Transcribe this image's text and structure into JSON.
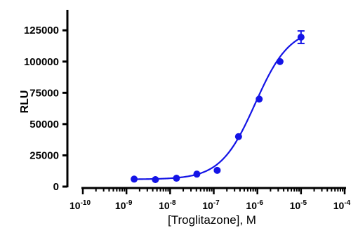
{
  "chart_data": {
    "type": "scatter",
    "xlabel": "[Troglitazone], M",
    "ylabel": "RLU",
    "xscale": "log",
    "xlim": [
      1e-10,
      0.0001
    ],
    "ylim": [
      0,
      135000
    ],
    "yticks": [
      {
        "value": 0,
        "label": "0"
      },
      {
        "value": 25000,
        "label": "25000"
      },
      {
        "value": 50000,
        "label": "50000"
      },
      {
        "value": 75000,
        "label": "75000"
      },
      {
        "value": 100000,
        "label": "100000"
      },
      {
        "value": 125000,
        "label": "125000"
      }
    ],
    "xticks": [
      {
        "exp": -10,
        "label_base": "10",
        "label_exp": "-10"
      },
      {
        "exp": -9,
        "label_base": "10",
        "label_exp": "-9"
      },
      {
        "exp": -8,
        "label_base": "10",
        "label_exp": "-8"
      },
      {
        "exp": -7,
        "label_base": "10",
        "label_exp": "-7"
      },
      {
        "exp": -6,
        "label_base": "10",
        "label_exp": "-6"
      },
      {
        "exp": -5,
        "label_base": "10",
        "label_exp": "-5"
      },
      {
        "exp": -4,
        "label_base": "10",
        "label_exp": "-4"
      }
    ],
    "series": [
      {
        "color": "#1414e6",
        "points": [
          {
            "x": 1.5e-09,
            "y": 6000
          },
          {
            "x": 4.6e-09,
            "y": 5600
          },
          {
            "x": 1.4e-08,
            "y": 6700
          },
          {
            "x": 4.1e-08,
            "y": 10000
          },
          {
            "x": 1.2e-07,
            "y": 13000
          },
          {
            "x": 3.7e-07,
            "y": 40000
          },
          {
            "x": 1.1e-06,
            "y": 70000
          },
          {
            "x": 3.3e-06,
            "y": 100000
          },
          {
            "x": 1e-05,
            "y": 119500,
            "err": 5000
          }
        ],
        "fit": {
          "model": "4PL",
          "bottom": 5800,
          "top": 127000,
          "logEC50": -6.05,
          "hill": 1.1
        }
      }
    ],
    "grid": false,
    "legend": "none"
  }
}
